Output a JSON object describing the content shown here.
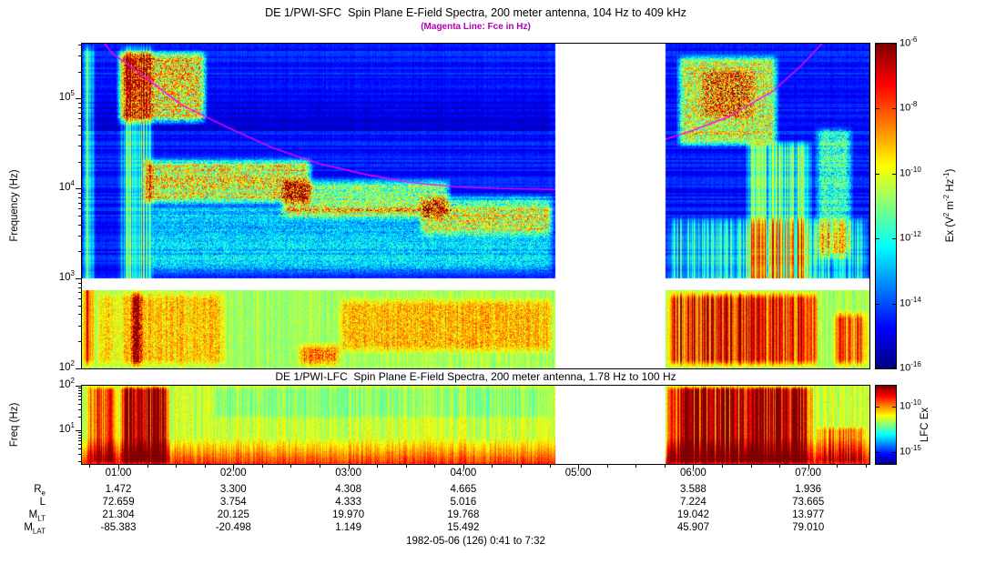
{
  "chart_data": {
    "type": "heatmap",
    "fce_color": "#ff00ff",
    "footer": "1982-05-06 (126) 0:41 to 7:32",
    "time_range_hours": [
      0.683,
      7.533
    ],
    "data_gap_hours": [
      4.8,
      5.76
    ],
    "time_ticks": [
      {
        "hours": 1,
        "label": "01:00"
      },
      {
        "hours": 2,
        "label": "02:00"
      },
      {
        "hours": 3,
        "label": "03:00"
      },
      {
        "hours": 4,
        "label": "04:00"
      },
      {
        "hours": 5,
        "label": "05:00"
      },
      {
        "hours": 6,
        "label": "06:00"
      },
      {
        "hours": 7,
        "label": "07:00"
      }
    ],
    "panels": [
      {
        "id": "sfc",
        "title": "DE 1/PWI-SFC  Spin Plane E-Field Spectra, 200 meter antenna, 104 Hz to 409 kHz",
        "subtitle": "(Magenta Line: Fce in Hz)",
        "subtitle_color": "#b300b3",
        "ylabel": "Frequency (Hz)",
        "yscale": "log",
        "ylim_hz": [
          100,
          409000
        ],
        "ylog_range": [
          2,
          5.612
        ],
        "yticks": [
          {
            "exp": "5",
            "logf": 5
          },
          {
            "exp": "4",
            "logf": 4
          },
          {
            "exp": "3",
            "logf": 3
          },
          {
            "exp": "2",
            "logf": 2
          }
        ],
        "separator_band_logf": [
          2.87,
          3.0
        ],
        "colorbar": {
          "range_exponents": [
            -16,
            -6
          ],
          "ticks": [
            {
              "exp": "-6",
              "frac": 0.0
            },
            {
              "exp": "-8",
              "frac": 0.2
            },
            {
              "exp": "-10",
              "frac": 0.4
            },
            {
              "exp": "-12",
              "frac": 0.6
            },
            {
              "exp": "-14",
              "frac": 0.8
            },
            {
              "exp": "-16",
              "frac": 1.0
            }
          ],
          "label_parts": [
            {
              "t": "Ex (V"
            },
            {
              "sup": "2"
            },
            {
              "t": " m"
            },
            {
              "sup": "-2"
            },
            {
              "t": " Hz"
            },
            {
              "sup": "-1"
            },
            {
              "t": ")"
            }
          ]
        },
        "fce_segments": [
          [
            [
              0.88,
              5.612
            ],
            [
              0.95,
              5.5
            ],
            [
              1.16,
              5.31
            ],
            [
              1.55,
              4.93
            ],
            [
              1.95,
              4.68
            ],
            [
              2.35,
              4.45
            ],
            [
              2.74,
              4.28
            ],
            [
              3.14,
              4.16
            ],
            [
              3.53,
              4.07
            ],
            [
              3.93,
              4.02
            ],
            [
              4.35,
              4.0
            ],
            [
              4.8,
              3.99
            ]
          ],
          [
            [
              5.76,
              4.55
            ],
            [
              6.0,
              4.65
            ],
            [
              6.31,
              4.8
            ],
            [
              6.7,
              5.09
            ],
            [
              6.94,
              5.37
            ],
            [
              7.12,
              5.612
            ]
          ]
        ],
        "features": [
          {
            "t": [
              0.683,
              0.8
            ],
            "f": [
              2.0,
              5.612
            ],
            "amp": 0.42,
            "streaky": true
          },
          {
            "t": [
              0.8,
              1.02
            ],
            "f": [
              2.0,
              2.87
            ],
            "amp": 0.12
          },
          {
            "t": [
              1.0,
              1.32
            ],
            "f": [
              2.87,
              5.612
            ],
            "amp": 0.26,
            "streaky": true
          },
          {
            "t": [
              0.98,
              1.78
            ],
            "f": [
              4.7,
              5.55
            ],
            "amp": 0.5
          },
          {
            "t": [
              1.1,
              1.22
            ],
            "f": [
              2.0,
              2.87
            ],
            "amp": 0.5
          },
          {
            "t": [
              1.2,
              2.7
            ],
            "f": [
              3.8,
              4.35
            ],
            "amp": 0.46
          },
          {
            "t": [
              2.4,
              3.9
            ],
            "f": [
              3.65,
              4.12
            ],
            "amp": 0.36
          },
          {
            "t": [
              3.6,
              4.8
            ],
            "f": [
              3.45,
              3.95
            ],
            "amp": 0.28
          },
          {
            "t": [
              1.25,
              4.8
            ],
            "f": [
              3.02,
              3.85
            ],
            "amp": 0.18
          },
          {
            "t": [
              0.98,
              1.95
            ],
            "f": [
              2.0,
              2.87
            ],
            "amp": 0.14
          },
          {
            "t": [
              2.9,
              4.8
            ],
            "f": [
              2.15,
              2.8
            ],
            "amp": 0.15
          },
          {
            "t": [
              2.55,
              2.95
            ],
            "f": [
              2.0,
              2.3
            ],
            "amp": 0.22
          },
          {
            "t": [
              5.76,
              7.1
            ],
            "f": [
              2.0,
              2.87
            ],
            "amp": 0.3,
            "streaky": true
          },
          {
            "t": [
              7.2,
              7.533
            ],
            "f": [
              2.0,
              2.65
            ],
            "amp": 0.24,
            "streaky": true
          },
          {
            "t": [
              5.85,
              6.75
            ],
            "f": [
              4.45,
              5.5
            ],
            "amp": 0.44
          },
          {
            "t": [
              6.05,
              6.55
            ],
            "f": [
              4.75,
              5.35
            ],
            "amp": 0.18
          },
          {
            "t": [
              6.45,
              7.05
            ],
            "f": [
              2.87,
              4.55
            ],
            "amp": 0.3,
            "streaky": true
          },
          {
            "t": [
              7.05,
              7.4
            ],
            "f": [
              3.2,
              4.7
            ],
            "amp": 0.28
          },
          {
            "t": [
              5.76,
              7.533
            ],
            "f": [
              2.87,
              3.7
            ],
            "amp": 0.2,
            "streaky": true
          },
          {
            "t": [
              0.683,
              4.8
            ],
            "f": [
              4.58,
              5.02
            ],
            "amp": -0.045
          },
          {
            "t": [
              0.683,
              4.8
            ],
            "f": [
              4.83,
              4.87
            ],
            "amp": 0.14
          }
        ]
      },
      {
        "id": "lfc",
        "title": "DE 1/PWI-LFC  Spin Plane E-Field Spectra, 200 meter antenna, 1.78 Hz to 100 Hz",
        "ylabel": "Freq (Hz)",
        "yscale": "log",
        "ylim_hz": [
          1.78,
          100
        ],
        "ylog_range": [
          0.25,
          2
        ],
        "yticks": [
          {
            "exp": "2",
            "logf": 2
          },
          {
            "exp": "1",
            "logf": 1
          }
        ],
        "colorbar": {
          "ticks": [
            {
              "exp": "-10",
              "frac": 0.27
            },
            {
              "exp": "-15",
              "frac": 0.85
            }
          ],
          "label_parts": [
            {
              "t": "LFC Ex"
            }
          ]
        },
        "features": [
          {
            "t": [
              0.72,
              1.0
            ],
            "f": [
              0.25,
              2.0
            ],
            "amp": 0.26,
            "streaky": true
          },
          {
            "t": [
              1.0,
              1.45
            ],
            "f": [
              0.25,
              2.0
            ],
            "amp": 0.4,
            "streaky": true
          },
          {
            "t": [
              5.76,
              7.05
            ],
            "f": [
              0.25,
              2.0
            ],
            "amp": 0.38,
            "streaky": true
          },
          {
            "t": [
              7.05,
              7.533
            ],
            "f": [
              0.25,
              1.1
            ],
            "amp": 0.16,
            "streaky": true
          },
          {
            "t": [
              1.8,
              4.8
            ],
            "f": [
              1.25,
              2.0
            ],
            "amp": -0.06
          }
        ]
      }
    ],
    "ephemeris": {
      "rows": [
        {
          "label_parts": [
            {
              "t": "R"
            },
            {
              "sub": "e"
            }
          ],
          "values": [
            "1.472",
            "3.300",
            "4.308",
            "4.665",
            null,
            "3.588",
            "1.936"
          ]
        },
        {
          "label_parts": [
            {
              "t": "L"
            }
          ],
          "values": [
            "72.659",
            "3.754",
            "4.333",
            "5.016",
            null,
            "7.224",
            "73.665"
          ]
        },
        {
          "label_parts": [
            {
              "t": "M"
            },
            {
              "sub": "LT"
            }
          ],
          "values": [
            "21.304",
            "20.125",
            "19.970",
            "19.768",
            null,
            "19.042",
            "13.977"
          ]
        },
        {
          "label_parts": [
            {
              "t": "M"
            },
            {
              "sub": "LAT"
            }
          ],
          "values": [
            "-85.383",
            "-20.498",
            "1.149",
            "15.492",
            null,
            "45.907",
            "79.010"
          ]
        }
      ]
    }
  }
}
